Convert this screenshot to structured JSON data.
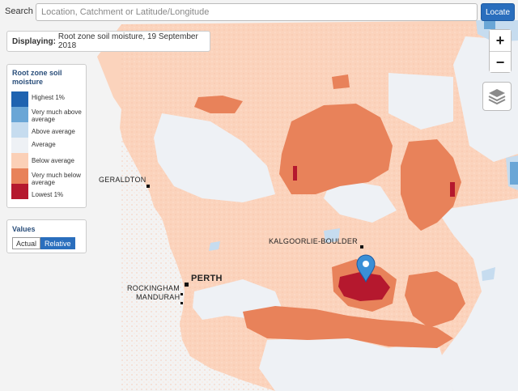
{
  "search": {
    "label": "Search",
    "placeholder": "Location, Catchment or Latitude/Longitude",
    "button_label": "Locate"
  },
  "display": {
    "prefix": "Displaying:",
    "text": "Root zone soil moisture, 19 September 2018"
  },
  "legend": {
    "title": "Root zone soil moisture",
    "items": [
      {
        "label": "Highest 1%",
        "color": "#1f63b0"
      },
      {
        "label": "Very much above average",
        "color": "#6aa6d6"
      },
      {
        "label": "Above average",
        "color": "#c6dcef"
      },
      {
        "label": "Average",
        "color": "#eef1f5"
      },
      {
        "label": "Below average",
        "color": "#fbd0b7"
      },
      {
        "label": "Very much below average",
        "color": "#e8825a"
      },
      {
        "label": "Lowest 1%",
        "color": "#b5182e"
      }
    ]
  },
  "values": {
    "title": "Values",
    "options": [
      "Actual",
      "Relative"
    ],
    "selected": "Relative"
  },
  "zoom": {
    "in_label": "+",
    "out_label": "−"
  },
  "icons": {
    "layers": "layers-icon",
    "marker": "map-marker-icon"
  },
  "towns": {
    "geraldton": "GERALDTON",
    "kalgoorlie": "KALGOORLIE-BOULDER",
    "perth": "PERTH",
    "rockingham": "ROCKINGHAM",
    "mandurah": "MANDURAH"
  },
  "colors": {
    "ocean": "#f3f3f3",
    "accent": "#2a6ebd",
    "marker": "#3a8fd6"
  }
}
